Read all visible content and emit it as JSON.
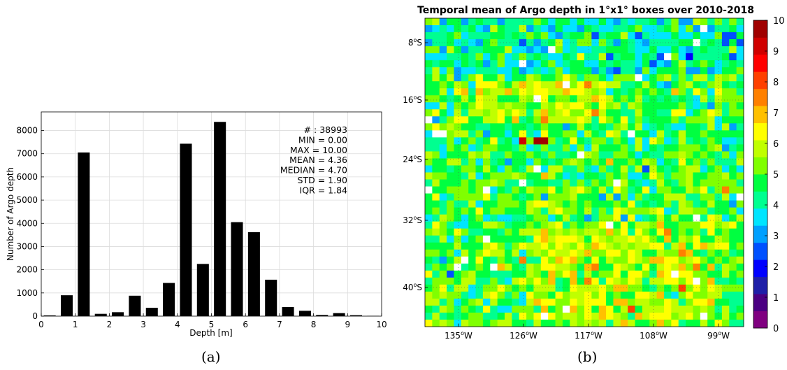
{
  "chart_data": [
    {
      "type": "bar",
      "panel_label": "(a)",
      "xlabel": "Depth [m]",
      "ylabel": "Number of Argo depth",
      "xlim": [
        0,
        10
      ],
      "ylim": [
        0,
        8800
      ],
      "xticks": [
        0,
        1,
        2,
        3,
        4,
        5,
        6,
        7,
        8,
        9,
        10
      ],
      "yticks": [
        0,
        1000,
        2000,
        3000,
        4000,
        5000,
        6000,
        7000,
        8000
      ],
      "grid": true,
      "bar_width": 0.35,
      "bars": [
        {
          "x": 0.25,
          "value": 30
        },
        {
          "x": 0.75,
          "value": 900
        },
        {
          "x": 1.25,
          "value": 7050
        },
        {
          "x": 1.75,
          "value": 100
        },
        {
          "x": 2.25,
          "value": 170
        },
        {
          "x": 2.75,
          "value": 880
        },
        {
          "x": 3.25,
          "value": 360
        },
        {
          "x": 3.75,
          "value": 1430
        },
        {
          "x": 4.25,
          "value": 7430
        },
        {
          "x": 4.75,
          "value": 2250
        },
        {
          "x": 5.25,
          "value": 8370
        },
        {
          "x": 5.75,
          "value": 4050
        },
        {
          "x": 6.25,
          "value": 3620
        },
        {
          "x": 6.75,
          "value": 1570
        },
        {
          "x": 7.25,
          "value": 390
        },
        {
          "x": 7.75,
          "value": 230
        },
        {
          "x": 8.25,
          "value": 50
        },
        {
          "x": 8.75,
          "value": 130
        },
        {
          "x": 9.25,
          "value": 40
        },
        {
          "x": 9.75,
          "value": 10
        }
      ],
      "stats": [
        "# : 38993",
        "MIN = 0.00",
        "MAX =  10.00",
        "MEAN = 4.36",
        "MEDIAN = 4.70",
        "STD = 1.90",
        "IQR = 1.84"
      ]
    },
    {
      "type": "heatmap",
      "panel_label": "(b)",
      "title": "Temporal mean of Argo depth in 1°x1° boxes over 2010-2018",
      "x_tick_labels": [
        "135°W",
        "126°W",
        "117°W",
        "108°W",
        "99°W"
      ],
      "y_tick_labels": [
        "8°S",
        "16°S",
        "24°S",
        "32°S",
        "40°S"
      ],
      "colorbar_ticks": [
        0,
        1,
        2,
        3,
        4,
        5,
        6,
        7,
        8,
        9,
        10
      ],
      "colorbar_range": [
        0,
        10
      ],
      "colormap": [
        "#800080",
        "#4b0082",
        "#1f1fa8",
        "#0000ff",
        "#0050ff",
        "#00a0ff",
        "#00e5ff",
        "#00ff90",
        "#00ff40",
        "#80ff00",
        "#c0ff00",
        "#ffff00",
        "#ffc000",
        "#ff8000",
        "#ff4000",
        "#ff0000",
        "#d00000",
        "#a00000"
      ],
      "grid": {
        "cols": 44,
        "rows": 44
      },
      "generation_seed": 12345
    }
  ]
}
